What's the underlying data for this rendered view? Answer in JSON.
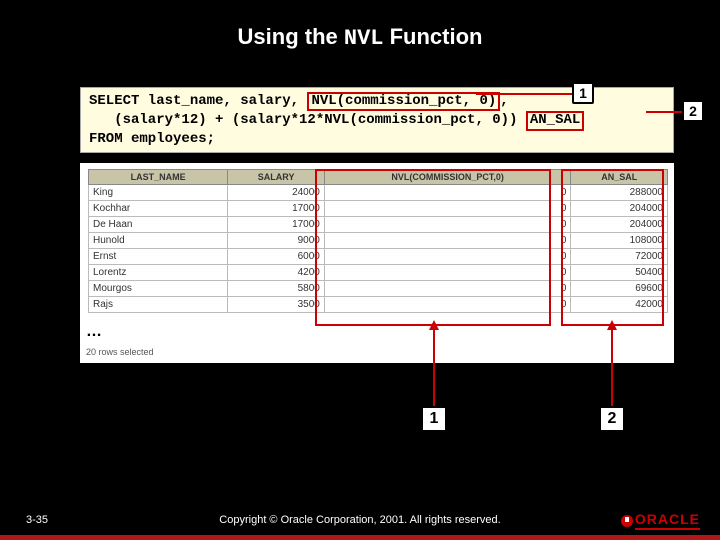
{
  "title_pre": "Using the ",
  "title_code": "NVL",
  "title_post": " Function",
  "code": {
    "l1a": "SELECT last_name, salary, ",
    "l1_hl": "NVL(commission_pct, 0)",
    "l1b": ",",
    "l2a": "   (salary*12) + (salary*12*NVL(commission_pct, 0)) ",
    "l2_hl": "AN_SAL",
    "l3": "FROM employees;"
  },
  "callouts": {
    "c1": "1",
    "c2": "2",
    "c1b": "1",
    "c2b": "2"
  },
  "table": {
    "headers": [
      "LAST_NAME",
      "SALARY",
      "NVL(COMMISSION_PCT,0)",
      "AN_SAL"
    ],
    "col_widths": [
      "130px",
      "90px",
      "230px",
      "90px"
    ],
    "rows": [
      [
        "King",
        "24000",
        "0",
        "288000"
      ],
      [
        "Kochhar",
        "17000",
        "0",
        "204000"
      ],
      [
        "De Haan",
        "17000",
        "0",
        "204000"
      ],
      [
        "Hunold",
        "9000",
        "0",
        "108000"
      ],
      [
        "Ernst",
        "6000",
        "0",
        "72000"
      ],
      [
        "Lorentz",
        "4200",
        "0",
        "50400"
      ],
      [
        "Mourgos",
        "5800",
        "0",
        "69600"
      ],
      [
        "Rajs",
        "3500",
        "0",
        "42000"
      ]
    ],
    "ellipsis": "…",
    "rowcount": "20 rows selected"
  },
  "footer": {
    "page": "3-35",
    "copyright": "Copyright © Oracle Corporation, 2001. All rights reserved.",
    "logo_text": "ORACLE"
  },
  "colors": {
    "hl_border": "#cc0000",
    "code_bg": "#fffce0"
  }
}
